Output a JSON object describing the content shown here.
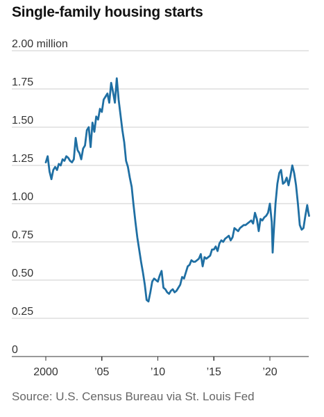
{
  "title": "Single-family housing starts",
  "source": "Source: U.S. Census Bureau via St. Louis Fed",
  "colors": {
    "series": "#1f6fa3",
    "grid": "#cccccc",
    "axis": "#333333"
  },
  "chart_data": {
    "type": "line",
    "title": "Single-family housing starts",
    "xlabel": "",
    "ylabel": "",
    "ylim": [
      0,
      2.0
    ],
    "xlim": [
      "2000-01",
      "2023-07"
    ],
    "grid": true,
    "legend": "none",
    "y_ticks": [
      {
        "value": 2.0,
        "label": "2.00 million"
      },
      {
        "value": 1.75,
        "label": "1.75"
      },
      {
        "value": 1.5,
        "label": "1.50"
      },
      {
        "value": 1.25,
        "label": "1.25"
      },
      {
        "value": 1.0,
        "label": "1.00"
      },
      {
        "value": 0.75,
        "label": "0.75"
      },
      {
        "value": 0.5,
        "label": "0.50"
      },
      {
        "value": 0.25,
        "label": "0.25"
      },
      {
        "value": 0,
        "label": "0"
      }
    ],
    "x_ticks": [
      {
        "value": "2000-01",
        "label": "2000"
      },
      {
        "value": "2005-01",
        "label": "’05"
      },
      {
        "value": "2010-01",
        "label": "’10"
      },
      {
        "value": "2015-01",
        "label": "’15"
      },
      {
        "value": "2020-01",
        "label": "’20"
      }
    ],
    "series": [
      {
        "x": [
          "2000-01",
          "2000-03",
          "2000-05",
          "2000-07",
          "2000-09",
          "2000-11",
          "2001-01",
          "2001-03",
          "2001-05",
          "2001-07",
          "2001-09",
          "2001-11",
          "2002-01",
          "2002-03",
          "2002-05",
          "2002-07",
          "2002-09",
          "2002-11",
          "2003-01",
          "2003-03",
          "2003-05",
          "2003-07",
          "2003-09",
          "2003-11",
          "2004-01",
          "2004-03",
          "2004-05",
          "2004-07",
          "2004-09",
          "2004-11",
          "2005-01",
          "2005-03",
          "2005-05",
          "2005-07",
          "2005-09",
          "2005-11",
          "2006-01",
          "2006-03",
          "2006-05",
          "2006-07",
          "2006-09",
          "2006-11",
          "2007-01",
          "2007-03",
          "2007-05",
          "2007-07",
          "2007-09",
          "2007-11",
          "2008-01",
          "2008-03",
          "2008-05",
          "2008-07",
          "2008-09",
          "2008-11",
          "2009-01",
          "2009-03",
          "2009-05",
          "2009-07",
          "2009-09",
          "2009-11",
          "2010-01",
          "2010-03",
          "2010-05",
          "2010-07",
          "2010-09",
          "2010-11",
          "2011-01",
          "2011-03",
          "2011-05",
          "2011-07",
          "2011-09",
          "2011-11",
          "2012-01",
          "2012-03",
          "2012-05",
          "2012-07",
          "2012-09",
          "2012-11",
          "2013-01",
          "2013-03",
          "2013-05",
          "2013-07",
          "2013-09",
          "2013-11",
          "2014-01",
          "2014-03",
          "2014-05",
          "2014-07",
          "2014-09",
          "2014-11",
          "2015-01",
          "2015-03",
          "2015-05",
          "2015-07",
          "2015-09",
          "2015-11",
          "2016-01",
          "2016-03",
          "2016-05",
          "2016-07",
          "2016-09",
          "2016-11",
          "2017-01",
          "2017-03",
          "2017-05",
          "2017-07",
          "2017-09",
          "2017-11",
          "2018-01",
          "2018-03",
          "2018-05",
          "2018-07",
          "2018-09",
          "2018-11",
          "2019-01",
          "2019-03",
          "2019-05",
          "2019-07",
          "2019-09",
          "2019-11",
          "2020-01",
          "2020-03",
          "2020-04",
          "2020-05",
          "2020-07",
          "2020-09",
          "2020-11",
          "2021-01",
          "2021-03",
          "2021-05",
          "2021-07",
          "2021-09",
          "2021-11",
          "2022-01",
          "2022-03",
          "2022-05",
          "2022-07",
          "2022-09",
          "2022-11",
          "2023-01",
          "2023-03",
          "2023-05",
          "2023-06",
          "2023-07"
        ],
        "values": [
          1.27,
          1.31,
          1.21,
          1.16,
          1.22,
          1.24,
          1.22,
          1.26,
          1.25,
          1.29,
          1.28,
          1.31,
          1.3,
          1.28,
          1.27,
          1.29,
          1.43,
          1.35,
          1.33,
          1.29,
          1.36,
          1.38,
          1.48,
          1.5,
          1.37,
          1.53,
          1.47,
          1.57,
          1.55,
          1.62,
          1.6,
          1.68,
          1.7,
          1.72,
          1.66,
          1.79,
          1.73,
          1.66,
          1.82,
          1.68,
          1.58,
          1.48,
          1.4,
          1.28,
          1.24,
          1.17,
          1.11,
          0.99,
          0.88,
          0.78,
          0.7,
          0.62,
          0.55,
          0.47,
          0.37,
          0.36,
          0.42,
          0.49,
          0.51,
          0.5,
          0.49,
          0.53,
          0.56,
          0.45,
          0.44,
          0.42,
          0.41,
          0.43,
          0.44,
          0.42,
          0.43,
          0.45,
          0.47,
          0.52,
          0.51,
          0.55,
          0.59,
          0.6,
          0.63,
          0.62,
          0.62,
          0.63,
          0.64,
          0.67,
          0.59,
          0.65,
          0.64,
          0.65,
          0.66,
          0.7,
          0.7,
          0.72,
          0.69,
          0.74,
          0.76,
          0.75,
          0.77,
          0.78,
          0.79,
          0.76,
          0.78,
          0.84,
          0.83,
          0.82,
          0.84,
          0.85,
          0.86,
          0.86,
          0.87,
          0.88,
          0.89,
          0.87,
          0.94,
          0.9,
          0.82,
          0.9,
          0.89,
          0.91,
          0.92,
          0.94,
          1.0,
          0.88,
          0.68,
          0.8,
          1.0,
          1.13,
          1.2,
          1.22,
          1.13,
          1.14,
          1.17,
          1.12,
          1.18,
          1.25,
          1.2,
          1.12,
          1.0,
          0.86,
          0.83,
          0.84,
          0.92,
          0.99,
          0.95,
          0.92
        ]
      }
    ]
  }
}
